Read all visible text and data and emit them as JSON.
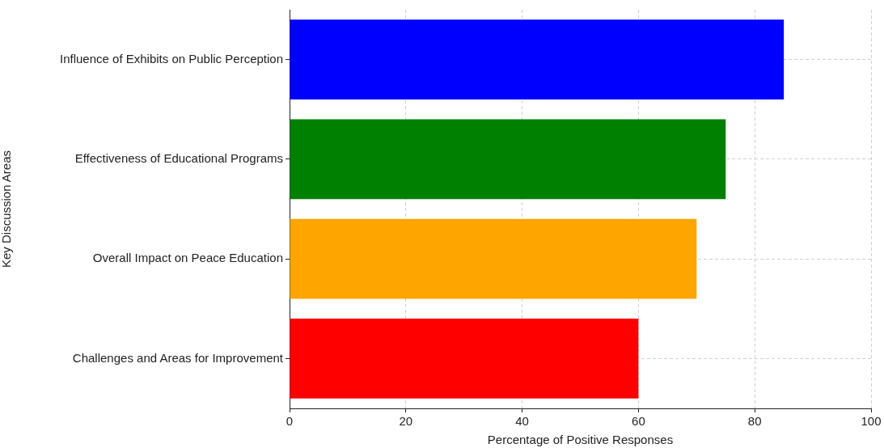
{
  "chart_data": {
    "type": "bar",
    "orientation": "horizontal",
    "xlabel": "Percentage of Positive Responses",
    "ylabel": "Key Discussion Areas",
    "categories": [
      "Influence of Exhibits on Public Perception",
      "Effectiveness of Educational Programs",
      "Overall Impact on Peace Education",
      "Challenges and Areas for Improvement"
    ],
    "values": [
      85,
      75,
      70,
      60
    ],
    "colors": [
      "#0000ff",
      "#008000",
      "#ffa500",
      "#ff0000"
    ],
    "xlim": [
      0,
      100
    ],
    "xticks": [
      0,
      20,
      40,
      60,
      80,
      100
    ],
    "grid": true,
    "legend": false
  }
}
